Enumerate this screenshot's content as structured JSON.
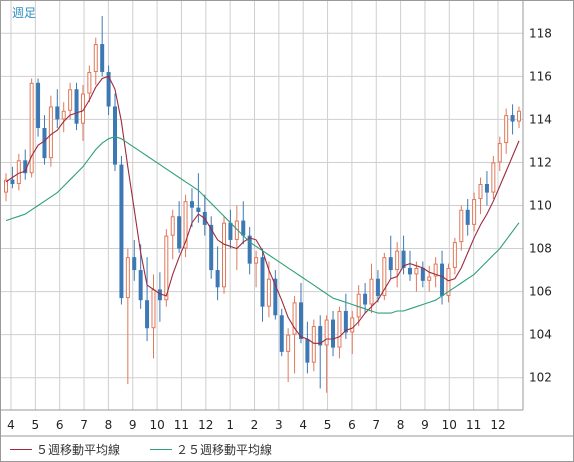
{
  "period_label": "週足",
  "chart_data": {
    "type": "candlestick",
    "timeframe": "週足",
    "ylim": [
      100.5,
      119.5
    ],
    "y_ticks": [
      102,
      104,
      106,
      108,
      110,
      112,
      114,
      116,
      118
    ],
    "x_tick_labels": [
      "4",
      "5",
      "6",
      "7",
      "8",
      "9",
      "10",
      "11",
      "12",
      "1",
      "2",
      "3",
      "4",
      "5",
      "6",
      "7",
      "8",
      "9",
      "10",
      "11",
      "12"
    ],
    "grid": true,
    "legend_position": "bottom-left",
    "colors": {
      "up": "#e0785a",
      "down": "#3c78b4",
      "ma5": "#9c2b3c",
      "ma25": "#2ea07a",
      "grid": "#cfcfcf"
    },
    "candles": [
      [
        110.6,
        111.5,
        110.2,
        111.2
      ],
      [
        111.2,
        111.8,
        110.8,
        111.0
      ],
      [
        111.0,
        112.4,
        110.7,
        112.1
      ],
      [
        112.1,
        112.6,
        111.2,
        111.5
      ],
      [
        111.5,
        115.9,
        111.3,
        115.7
      ],
      [
        115.7,
        115.9,
        113.2,
        113.6
      ],
      [
        113.6,
        114.2,
        111.9,
        112.2
      ],
      [
        112.2,
        115.1,
        111.8,
        114.6
      ],
      [
        114.6,
        115.4,
        113.6,
        114.0
      ],
      [
        114.0,
        114.8,
        113.4,
        114.4
      ],
      [
        114.4,
        115.7,
        114.0,
        115.4
      ],
      [
        115.4,
        115.7,
        113.5,
        113.8
      ],
      [
        113.8,
        115.6,
        113.0,
        115.2
      ],
      [
        115.2,
        116.5,
        114.8,
        116.2
      ],
      [
        116.2,
        117.8,
        115.6,
        117.5
      ],
      [
        117.5,
        118.8,
        116.0,
        116.2
      ],
      [
        116.2,
        116.5,
        114.2,
        114.6
      ],
      [
        114.6,
        115.2,
        111.6,
        111.9
      ],
      [
        111.9,
        112.3,
        105.4,
        105.7
      ],
      [
        105.7,
        108.0,
        101.7,
        107.6
      ],
      [
        107.6,
        108.4,
        106.5,
        107.0
      ],
      [
        107.0,
        108.2,
        105.2,
        105.6
      ],
      [
        105.6,
        107.6,
        103.7,
        104.3
      ],
      [
        104.3,
        106.8,
        102.9,
        106.1
      ],
      [
        106.1,
        106.9,
        104.6,
        105.6
      ],
      [
        105.6,
        108.9,
        105.3,
        108.6
      ],
      [
        108.6,
        109.8,
        107.5,
        109.5
      ],
      [
        109.5,
        110.2,
        107.8,
        108.0
      ],
      [
        108.0,
        110.5,
        107.6,
        110.2
      ],
      [
        110.2,
        110.8,
        109.0,
        109.9
      ],
      [
        109.9,
        111.5,
        109.2,
        109.7
      ],
      [
        109.7,
        110.5,
        108.6,
        109.1
      ],
      [
        109.1,
        109.5,
        106.6,
        107.0
      ],
      [
        107.0,
        108.1,
        105.6,
        106.2
      ],
      [
        106.2,
        109.5,
        105.9,
        109.2
      ],
      [
        109.2,
        109.8,
        108.0,
        108.4
      ],
      [
        108.4,
        110.0,
        107.0,
        109.3
      ],
      [
        109.3,
        110.2,
        108.2,
        108.6
      ],
      [
        108.6,
        109.0,
        106.8,
        107.3
      ],
      [
        107.3,
        107.9,
        106.2,
        107.6
      ],
      [
        107.6,
        108.0,
        104.6,
        105.3
      ],
      [
        105.3,
        107.4,
        104.8,
        106.6
      ],
      [
        106.6,
        107.0,
        104.7,
        104.9
      ],
      [
        104.9,
        105.2,
        103.0,
        103.2
      ],
      [
        103.2,
        104.3,
        101.8,
        104.0
      ],
      [
        104.0,
        105.8,
        102.2,
        105.5
      ],
      [
        105.5,
        106.4,
        103.6,
        103.8
      ],
      [
        103.8,
        104.6,
        102.2,
        102.7
      ],
      [
        102.7,
        104.7,
        102.3,
        104.4
      ],
      [
        104.4,
        104.9,
        101.5,
        103.5
      ],
      [
        103.5,
        104.9,
        101.3,
        104.7
      ],
      [
        104.7,
        105.1,
        103.0,
        103.4
      ],
      [
        103.4,
        105.3,
        102.9,
        105.1
      ],
      [
        105.1,
        105.9,
        103.8,
        104.1
      ],
      [
        104.1,
        105.1,
        103.1,
        104.8
      ],
      [
        104.8,
        106.3,
        104.4,
        105.9
      ],
      [
        105.9,
        106.4,
        105.0,
        105.4
      ],
      [
        105.4,
        107.3,
        105.0,
        106.6
      ],
      [
        106.6,
        107.0,
        105.5,
        105.8
      ],
      [
        105.8,
        107.8,
        105.6,
        107.6
      ],
      [
        107.6,
        108.6,
        106.6,
        107.0
      ],
      [
        107.0,
        108.3,
        106.2,
        107.9
      ],
      [
        107.9,
        108.6,
        106.8,
        107.1
      ],
      [
        107.1,
        107.9,
        106.5,
        106.8
      ],
      [
        106.8,
        107.4,
        106.0,
        107.1
      ],
      [
        107.1,
        107.4,
        106.2,
        106.5
      ],
      [
        106.5,
        107.2,
        106.0,
        106.7
      ],
      [
        106.7,
        107.6,
        106.2,
        107.3
      ],
      [
        107.3,
        107.9,
        105.4,
        105.8
      ],
      [
        105.8,
        107.3,
        105.5,
        107.1
      ],
      [
        107.1,
        108.5,
        106.8,
        108.3
      ],
      [
        108.3,
        110.0,
        107.9,
        109.8
      ],
      [
        109.8,
        110.3,
        108.6,
        109.1
      ],
      [
        109.1,
        110.6,
        108.8,
        110.3
      ],
      [
        110.3,
        111.3,
        109.6,
        111.0
      ],
      [
        111.0,
        111.6,
        110.0,
        110.6
      ],
      [
        110.6,
        112.3,
        110.3,
        112.0
      ],
      [
        112.0,
        113.2,
        111.6,
        112.9
      ],
      [
        112.9,
        114.5,
        112.4,
        114.2
      ],
      [
        114.2,
        114.7,
        113.3,
        113.9
      ],
      [
        113.9,
        114.6,
        113.6,
        114.4
      ]
    ],
    "series": [
      {
        "name": "５週移動平均線",
        "color": "#9c2b3c",
        "values": [
          111.1,
          111.3,
          111.5,
          111.6,
          112.3,
          112.8,
          113.0,
          113.3,
          113.5,
          113.9,
          114.2,
          114.3,
          114.4,
          114.9,
          115.5,
          115.9,
          116.0,
          115.4,
          113.9,
          111.8,
          109.8,
          107.8,
          106.3,
          106.1,
          105.9,
          105.8,
          106.8,
          107.6,
          108.3,
          109.2,
          109.6,
          109.4,
          108.9,
          108.4,
          108.2,
          108.1,
          108.0,
          108.3,
          108.5,
          108.4,
          107.9,
          107.0,
          106.3,
          105.6,
          104.8,
          104.3,
          103.9,
          103.8,
          103.6,
          103.6,
          103.8,
          103.8,
          103.9,
          104.2,
          104.3,
          104.6,
          105.0,
          105.3,
          105.6,
          106.1,
          106.6,
          106.7,
          107.2,
          107.3,
          107.2,
          107.1,
          106.9,
          106.8,
          106.7,
          106.5,
          106.6,
          107.1,
          107.8,
          108.5,
          109.1,
          109.6,
          110.2,
          110.9,
          111.6,
          112.3,
          113.0
        ]
      },
      {
        "name": "２５週移動平均線",
        "color": "#2ea07a",
        "values": [
          109.3,
          109.4,
          109.5,
          109.6,
          109.8,
          110.0,
          110.2,
          110.4,
          110.6,
          110.9,
          111.2,
          111.5,
          111.8,
          112.2,
          112.6,
          112.9,
          113.1,
          113.2,
          113.1,
          112.9,
          112.7,
          112.5,
          112.3,
          112.1,
          111.9,
          111.7,
          111.5,
          111.3,
          111.1,
          110.9,
          110.7,
          110.4,
          110.1,
          109.8,
          109.5,
          109.2,
          108.9,
          108.6,
          108.3,
          108.1,
          107.9,
          107.7,
          107.5,
          107.3,
          107.1,
          106.9,
          106.7,
          106.5,
          106.3,
          106.1,
          105.9,
          105.7,
          105.6,
          105.5,
          105.4,
          105.3,
          105.2,
          105.1,
          105.0,
          105.0,
          105.0,
          105.1,
          105.1,
          105.2,
          105.3,
          105.4,
          105.5,
          105.6,
          105.8,
          106.0,
          106.2,
          106.4,
          106.6,
          106.8,
          107.1,
          107.4,
          107.7,
          108.0,
          108.4,
          108.8,
          109.2
        ]
      }
    ]
  }
}
